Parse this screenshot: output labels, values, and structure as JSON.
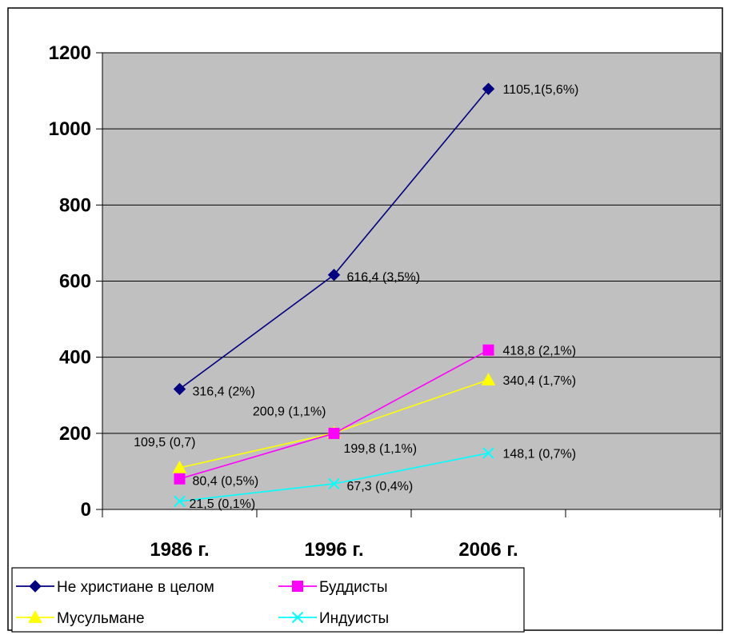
{
  "chart_data": {
    "type": "line",
    "categories": [
      "1986 г.",
      "1996 г.",
      "2006 г."
    ],
    "ylim": [
      0,
      1200
    ],
    "yticks": [
      0,
      200,
      400,
      600,
      800,
      1000,
      1200
    ],
    "grid": true,
    "legend_position": "bottom-left",
    "plot_background": "#c0c0c0",
    "series": [
      {
        "name": "Не христиане в целом",
        "color": "#000080",
        "marker": "diamond",
        "values": [
          316.4,
          616.4,
          1105.1
        ],
        "labels": [
          "316,4 (2%)",
          "616,4 (3,5%)",
          "1105,1(5,6%)"
        ]
      },
      {
        "name": "Буддисты",
        "color": "#ff00ff",
        "marker": "square",
        "values": [
          80.4,
          199.8,
          418.8
        ],
        "labels": [
          "80,4 (0,5%)",
          "199,8 (1,1%)",
          "418,8 (2,1%)"
        ]
      },
      {
        "name": "Мусульмане",
        "color": "#ffff00",
        "marker": "triangle",
        "values": [
          109.5,
          200.9,
          340.4
        ],
        "labels": [
          "109,5 (0,7)",
          "200,9 (1,1%)",
          "340,4 (1,7%)"
        ]
      },
      {
        "name": "Индуисты",
        "color": "#00ffff",
        "marker": "x",
        "values": [
          21.5,
          67.3,
          148.1
        ],
        "labels": [
          "21,5 (0,1%)",
          "67,3 (0,4%)",
          "148,1 (0,7%)"
        ]
      }
    ]
  }
}
